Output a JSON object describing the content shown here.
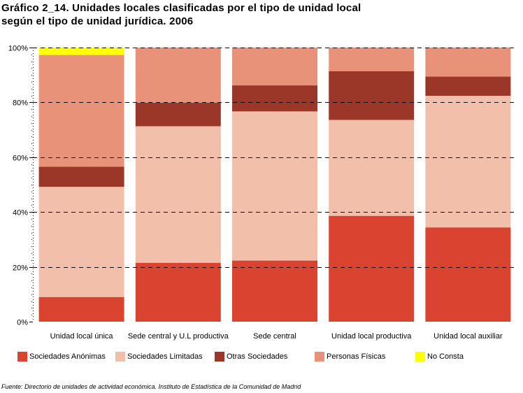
{
  "title_line1": "Gráfico 2_14. Unidades locales clasificadas por el tipo de unidad local",
  "title_line2": "según el tipo de unidad jurídica. 2006",
  "source": "Fuente: Directorio de unidades de actividad económica. Instituto de Estadística de la Comunidad de Madrid",
  "chart_data": {
    "type": "bar",
    "stacked": true,
    "percent": true,
    "categories": [
      "Unidad local única",
      "Sede central y U.L productiva",
      "Sede central",
      "Unidad local productiva",
      "Unidad local auxiliar"
    ],
    "series": [
      {
        "name": "Sociedades Anónimas",
        "color": "#d94330",
        "values": [
          9,
          21.5,
          22.3,
          38.6,
          34.4
        ]
      },
      {
        "name": "Sociedades Limitadas",
        "color": "#f2c0aa",
        "values": [
          40.2,
          49.8,
          54.4,
          35.0,
          48.0
        ]
      },
      {
        "name": "Otras Sociedades",
        "color": "#9b3729",
        "values": [
          7.3,
          8.6,
          9.5,
          17.8,
          7.0
        ]
      },
      {
        "name": "Personas Físicas",
        "color": "#e8927a",
        "values": [
          40.8,
          20.1,
          13.8,
          8.6,
          10.6
        ]
      },
      {
        "name": "No Consta",
        "color": "#ffff00",
        "values": [
          2.7,
          0,
          0,
          0,
          0
        ]
      }
    ],
    "y_ticks": [
      "0%",
      "20%",
      "40%",
      "60%",
      "80%",
      "100%"
    ],
    "ylim": [
      0,
      100
    ],
    "grid": true,
    "legend_position": "bottom"
  }
}
